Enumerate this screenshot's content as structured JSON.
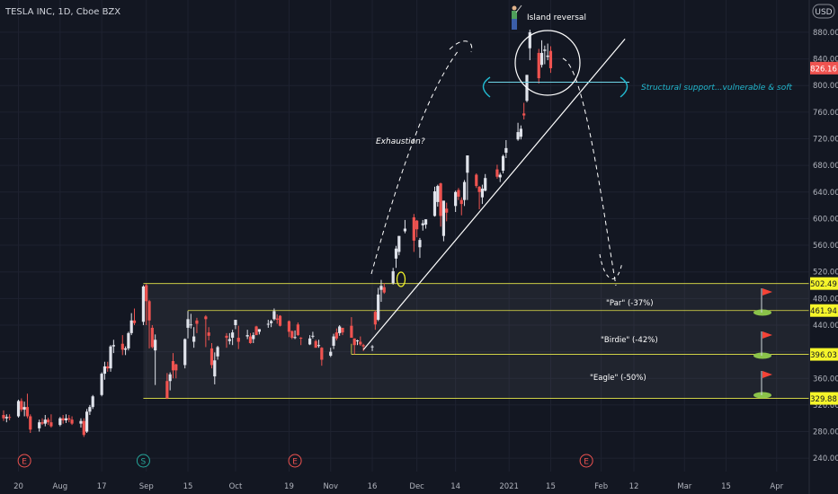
{
  "header": {
    "symbol_line": "TESLA INC, 1D, Cboe BZX",
    "currency": "USD"
  },
  "colors": {
    "background": "#131722",
    "grid": "#1e2230",
    "up": "#e0e3eb",
    "down": "#ef5350",
    "zone_line": "#e8e84a",
    "label_yellow": "#f5f52a",
    "current_price_bg": "#ef5350",
    "annotation_cyan": "#22b8cf",
    "white": "#ffffff"
  },
  "annotations": {
    "island": "Island reversal",
    "exhaustion": "Exhaustion?",
    "structural": "Structural support...vulnerable & soft",
    "par": "\"Par\" (-37%)",
    "birdie": "\"Birdie\" (-42%)",
    "eagle": "\"Eagle\" (-50%)"
  },
  "events": [
    {
      "letter": "E",
      "date": "2020-07-22",
      "color": "#ef5350"
    },
    {
      "letter": "S",
      "date": "2020-08-31",
      "color": "#26a69a"
    },
    {
      "letter": "E",
      "date": "2020-10-21",
      "color": "#ef5350"
    },
    {
      "letter": "E",
      "date": "2021-01-27",
      "color": "#ef5350"
    }
  ],
  "chart_data": {
    "type": "candlestick",
    "title": "TESLA INC, 1D, Cboe BZX",
    "currency": "USD",
    "ylim": [
      220,
      915
    ],
    "x_range": [
      "2020-07-15",
      "2021-04-05"
    ],
    "y_ticks": [
      240,
      280,
      320,
      360,
      400,
      440,
      480,
      520,
      560,
      600,
      640,
      680,
      720,
      760,
      800,
      840,
      880
    ],
    "x_ticks": [
      {
        "label": "20",
        "date": "2020-07-20"
      },
      {
        "label": "Aug",
        "date": "2020-08-03"
      },
      {
        "label": "17",
        "date": "2020-08-17"
      },
      {
        "label": "Sep",
        "date": "2020-09-01"
      },
      {
        "label": "15",
        "date": "2020-09-15"
      },
      {
        "label": "Oct",
        "date": "2020-10-01"
      },
      {
        "label": "19",
        "date": "2020-10-19"
      },
      {
        "label": "Nov",
        "date": "2020-11-02"
      },
      {
        "label": "16",
        "date": "2020-11-16"
      },
      {
        "label": "Dec",
        "date": "2020-12-01"
      },
      {
        "label": "14",
        "date": "2020-12-14"
      },
      {
        "label": "2021",
        "date": "2021-01-01"
      },
      {
        "label": "15",
        "date": "2021-01-15"
      },
      {
        "label": "Feb",
        "date": "2021-02-01"
      },
      {
        "label": "12",
        "date": "2021-02-12"
      },
      {
        "label": "Mar",
        "date": "2021-03-01"
      },
      {
        "label": "15",
        "date": "2021-03-15"
      },
      {
        "label": "Apr",
        "date": "2021-04-01"
      }
    ],
    "price_labels": [
      {
        "value": 826.16,
        "text": "826.16",
        "kind": "current"
      },
      {
        "value": 502.49,
        "text": "502.49",
        "kind": "level"
      },
      {
        "value": 461.94,
        "text": "461.94",
        "kind": "level"
      },
      {
        "value": 396.03,
        "text": "396.03",
        "kind": "level"
      },
      {
        "value": 329.88,
        "text": "329.88",
        "kind": "level"
      }
    ],
    "support_level": 805,
    "trendline": {
      "from": [
        "2020-11-13",
        403
      ],
      "to": [
        "2021-02-09",
        870
      ]
    },
    "consolidation_zone": {
      "start": "2020-08-31",
      "top": 502.49,
      "bottom": 329.88
    },
    "candles": [
      [
        "2020-07-15",
        305,
        312,
        296,
        300
      ],
      [
        "2020-07-16",
        300,
        306,
        294,
        302
      ],
      [
        "2020-07-17",
        302,
        306,
        297,
        301
      ],
      [
        "2020-07-20",
        303,
        328,
        301,
        326
      ],
      [
        "2020-07-21",
        326,
        330,
        310,
        313
      ],
      [
        "2020-07-22",
        313,
        325,
        303,
        317
      ],
      [
        "2020-07-23",
        317,
        337,
        300,
        303
      ],
      [
        "2020-07-24",
        303,
        306,
        278,
        283
      ],
      [
        "2020-07-27",
        285,
        298,
        280,
        294
      ],
      [
        "2020-07-28",
        294,
        300,
        290,
        292
      ],
      [
        "2020-07-29",
        292,
        305,
        288,
        298
      ],
      [
        "2020-07-30",
        298,
        301,
        290,
        294
      ],
      [
        "2020-07-31",
        294,
        306,
        286,
        288
      ],
      [
        "2020-08-03",
        290,
        302,
        288,
        300
      ],
      [
        "2020-08-04",
        300,
        305,
        292,
        297
      ],
      [
        "2020-08-05",
        297,
        306,
        293,
        300
      ],
      [
        "2020-08-06",
        300,
        305,
        294,
        298
      ],
      [
        "2020-08-07",
        298,
        303,
        290,
        292
      ],
      [
        "2020-08-10",
        292,
        300,
        286,
        296
      ],
      [
        "2020-08-11",
        296,
        300,
        272,
        275
      ],
      [
        "2020-08-12",
        280,
        314,
        278,
        310
      ],
      [
        "2020-08-13",
        310,
        320,
        305,
        317
      ],
      [
        "2020-08-14",
        317,
        335,
        314,
        333
      ],
      [
        "2020-08-17",
        335,
        369,
        333,
        367
      ],
      [
        "2020-08-18",
        367,
        385,
        358,
        378
      ],
      [
        "2020-08-19",
        378,
        385,
        370,
        375
      ],
      [
        "2020-08-20",
        375,
        410,
        370,
        408
      ],
      [
        "2020-08-21",
        408,
        418,
        398,
        410
      ],
      [
        "2020-08-24",
        412,
        425,
        395,
        403
      ],
      [
        "2020-08-25",
        403,
        408,
        395,
        405
      ],
      [
        "2020-08-26",
        405,
        430,
        402,
        428
      ],
      [
        "2020-08-27",
        428,
        458,
        425,
        447
      ],
      [
        "2020-08-28",
        447,
        465,
        440,
        443
      ],
      [
        "2020-08-31",
        445,
        500,
        440,
        498
      ],
      [
        "2020-09-01",
        500,
        502,
        440,
        476
      ],
      [
        "2020-09-02",
        476,
        478,
        405,
        447
      ],
      [
        "2020-09-03",
        436,
        440,
        405,
        407
      ],
      [
        "2020-09-04",
        402,
        426,
        350,
        418
      ],
      [
        "2020-09-08",
        356,
        368,
        329,
        330
      ],
      [
        "2020-09-09",
        356,
        369,
        342,
        366
      ],
      [
        "2020-09-10",
        386,
        398,
        360,
        372
      ],
      [
        "2020-09-11",
        381,
        382,
        360,
        372
      ],
      [
        "2020-09-14",
        380,
        420,
        375,
        419
      ],
      [
        "2020-09-15",
        436,
        461,
        420,
        449
      ],
      [
        "2020-09-16",
        440,
        457,
        435,
        441
      ],
      [
        "2020-09-17",
        415,
        437,
        406,
        423
      ],
      [
        "2020-09-18",
        447,
        451,
        428,
        442
      ],
      [
        "2020-09-21",
        453,
        455,
        407,
        449
      ],
      [
        "2020-09-22",
        429,
        437,
        417,
        424
      ],
      [
        "2020-09-23",
        405,
        413,
        375,
        380
      ],
      [
        "2020-09-24",
        363,
        399,
        351,
        387
      ],
      [
        "2020-09-25",
        393,
        409,
        388,
        407
      ],
      [
        "2020-09-28",
        424,
        428,
        406,
        421
      ],
      [
        "2020-09-29",
        416,
        428,
        411,
        419
      ],
      [
        "2020-09-30",
        421,
        433,
        410,
        429
      ],
      [
        "2020-10-01",
        440,
        448,
        434,
        448
      ],
      [
        "2020-10-02",
        421,
        439,
        404,
        415
      ],
      [
        "2020-10-05",
        423,
        433,
        419,
        425
      ],
      [
        "2020-10-06",
        423,
        428,
        412,
        413
      ],
      [
        "2020-10-07",
        419,
        429,
        413,
        425
      ],
      [
        "2020-10-08",
        438,
        439,
        425,
        425
      ],
      [
        "2020-10-09",
        430,
        434,
        426,
        434
      ],
      [
        "2020-10-12",
        442,
        448,
        436,
        442
      ],
      [
        "2020-10-13",
        443,
        448,
        437,
        446
      ],
      [
        "2020-10-14",
        449,
        465,
        447,
        461
      ],
      [
        "2020-10-15",
        450,
        456,
        442,
        448
      ],
      [
        "2020-10-16",
        454,
        455,
        438,
        439
      ],
      [
        "2020-10-19",
        446,
        447,
        422,
        430
      ],
      [
        "2020-10-20",
        431,
        432,
        419,
        421
      ],
      [
        "2020-10-21",
        422,
        432,
        419,
        422
      ],
      [
        "2020-10-22",
        441,
        444,
        424,
        425
      ],
      [
        "2020-10-23",
        421,
        422,
        410,
        420
      ],
      [
        "2020-10-26",
        411,
        425,
        410,
        420
      ],
      [
        "2020-10-27",
        423,
        430,
        420,
        424
      ],
      [
        "2020-10-28",
        416,
        418,
        406,
        406
      ],
      [
        "2020-10-29",
        409,
        418,
        406,
        410
      ],
      [
        "2020-10-30",
        406,
        407,
        379,
        388
      ],
      [
        "2020-11-02",
        394,
        406,
        392,
        400
      ],
      [
        "2020-11-03",
        409,
        427,
        404,
        423
      ],
      [
        "2020-11-04",
        429,
        435,
        417,
        420
      ],
      [
        "2020-11-05",
        428,
        440,
        424,
        438
      ],
      [
        "2020-11-06",
        436,
        436,
        425,
        429
      ],
      [
        "2020-11-09",
        439,
        452,
        421,
        421
      ],
      [
        "2020-11-10",
        420,
        420,
        396,
        410
      ],
      [
        "2020-11-11",
        416,
        418,
        410,
        417
      ],
      [
        "2020-11-12",
        415,
        423,
        409,
        411
      ],
      [
        "2020-11-13",
        410,
        412,
        401,
        408
      ],
      [
        "2020-11-16",
        408,
        410,
        401,
        408
      ],
      [
        "2020-11-17",
        460,
        462,
        433,
        441
      ],
      [
        "2020-11-18",
        448,
        496,
        446,
        486
      ],
      [
        "2020-11-19",
        493,
        508,
        475,
        499
      ],
      [
        "2020-11-20",
        497,
        503,
        487,
        489
      ],
      [
        "2020-11-23",
        503,
        526,
        501,
        521
      ],
      [
        "2020-11-24",
        540,
        559,
        526,
        555
      ],
      [
        "2020-11-25",
        550,
        574,
        545,
        574
      ],
      [
        "2020-11-27",
        581,
        598,
        578,
        585
      ],
      [
        "2020-11-30",
        602,
        607,
        550,
        567
      ],
      [
        "2020-12-01",
        597,
        598,
        572,
        584
      ],
      [
        "2020-12-02",
        557,
        571,
        541,
        568
      ],
      [
        "2020-12-03",
        590,
        598,
        582,
        593
      ],
      [
        "2020-12-04",
        591,
        599,
        585,
        599
      ],
      [
        "2020-12-07",
        604,
        648,
        603,
        641
      ],
      [
        "2020-12-08",
        625,
        651,
        618,
        649
      ],
      [
        "2020-12-09",
        653,
        654,
        588,
        604
      ],
      [
        "2020-12-10",
        574,
        627,
        566,
        627
      ],
      [
        "2020-12-11",
        615,
        624,
        596,
        609
      ],
      [
        "2020-12-14",
        619,
        642,
        610,
        640
      ],
      [
        "2020-12-15",
        643,
        646,
        628,
        633
      ],
      [
        "2020-12-16",
        628,
        632,
        605,
        622
      ],
      [
        "2020-12-17",
        628,
        658,
        619,
        655
      ],
      [
        "2020-12-18",
        669,
        695,
        628,
        695
      ],
      [
        "2020-12-21",
        666,
        668,
        646,
        649
      ],
      [
        "2020-12-22",
        648,
        649,
        614,
        640
      ],
      [
        "2020-12-23",
        632,
        651,
        622,
        645
      ],
      [
        "2020-12-24",
        642,
        667,
        641,
        661
      ],
      [
        "2020-12-28",
        674,
        681,
        660,
        663
      ],
      [
        "2020-12-29",
        662,
        669,
        655,
        666
      ],
      [
        "2020-12-30",
        672,
        696,
        668,
        694
      ],
      [
        "2020-12-31",
        699,
        718,
        691,
        706
      ],
      [
        "2021-01-04",
        719,
        744,
        717,
        730
      ],
      [
        "2021-01-05",
        723,
        740,
        719,
        735
      ],
      [
        "2021-01-06",
        758,
        774,
        749,
        755
      ],
      [
        "2021-01-07",
        777,
        816,
        775,
        816
      ],
      [
        "2021-01-08",
        856,
        884,
        838,
        880
      ],
      [
        "2021-01-11",
        849,
        855,
        803,
        811
      ],
      [
        "2021-01-12",
        831,
        868,
        827,
        849
      ],
      [
        "2021-01-13",
        852,
        860,
        832,
        854
      ],
      [
        "2021-01-14",
        843,
        863,
        838,
        845
      ],
      [
        "2021-01-15",
        852,
        859,
        819,
        826
      ]
    ]
  }
}
